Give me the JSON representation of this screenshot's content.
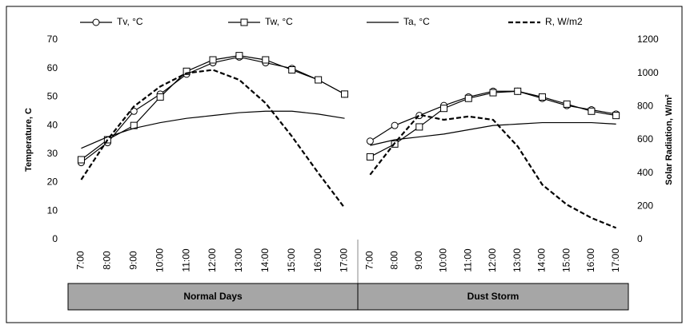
{
  "chart_data": {
    "type": "line",
    "ylabel": "Temperature, C",
    "y2label": "Solar Radiation, W/m²",
    "ylim": [
      0,
      70
    ],
    "yticks": [
      0,
      10,
      20,
      30,
      40,
      50,
      60,
      70
    ],
    "y2lim": [
      0,
      1200
    ],
    "y2ticks": [
      0,
      200,
      400,
      600,
      800,
      1000,
      1200
    ],
    "categories": [
      "7:00",
      "8:00",
      "9:00",
      "10:00",
      "11:00",
      "12:00",
      "13:00",
      "14:00",
      "15:00",
      "16:00",
      "17:00"
    ],
    "groups": [
      "Normal Days",
      "Dust Storm"
    ],
    "series": [
      {
        "name": "Tv, °C",
        "color": "#000000",
        "marker": "circle",
        "values": [
          [
            27,
            34,
            45,
            51,
            58,
            62,
            64,
            62,
            60,
            56,
            51
          ],
          [
            34.5,
            40,
            43.5,
            47,
            50,
            52,
            52,
            49.5,
            47,
            45.5,
            44
          ]
        ]
      },
      {
        "name": "Tw, °C",
        "color": "#000000",
        "marker": "square",
        "values": [
          [
            28,
            35,
            40,
            50,
            59,
            63,
            64.5,
            63,
            59.5,
            56,
            51
          ],
          [
            29,
            33.5,
            39.5,
            46,
            49.5,
            51.5,
            52,
            50,
            47.5,
            45,
            43.5
          ]
        ]
      },
      {
        "name": "Ta, °C",
        "color": "#000000",
        "values": [
          [
            32,
            36,
            39,
            41,
            42.5,
            43.5,
            44.5,
            45,
            45,
            44,
            42.5
          ],
          [
            33,
            35,
            36,
            37,
            38.5,
            40,
            40.5,
            41,
            41,
            41,
            40.5
          ]
        ]
      },
      {
        "name": "R, W/m2",
        "color": "#000000",
        "dash": true,
        "axis": "y2",
        "values": [
          [
            360,
            600,
            800,
            920,
            1000,
            1020,
            960,
            820,
            620,
            400,
            190
          ],
          [
            390,
            580,
            750,
            720,
            740,
            720,
            560,
            330,
            210,
            130,
            70
          ]
        ]
      }
    ]
  }
}
